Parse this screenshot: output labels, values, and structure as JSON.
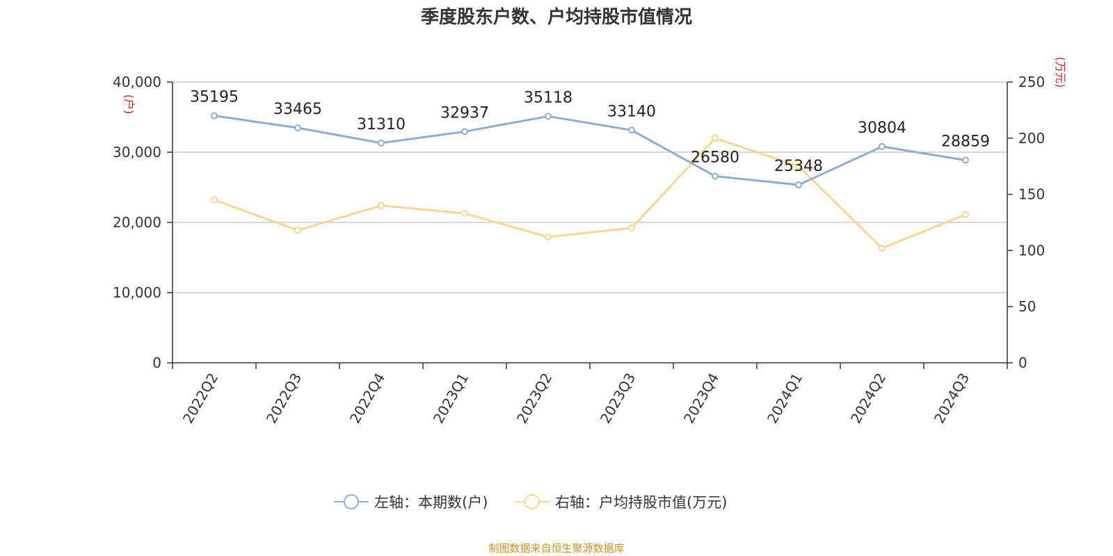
{
  "title": "季度股东户数、户均持股市值情况",
  "source": "制图数据来自恒生聚源数据库",
  "colors": {
    "series1": "#8eacd9",
    "series2": "#fcd68e",
    "unit": "#e02020",
    "source": "#c8951e",
    "grid": "#cccccc",
    "axis": "#333333"
  },
  "chart_data": {
    "type": "line",
    "title": "季度股东户数、户均持股市值情况",
    "categories": [
      "2022Q2",
      "2022Q3",
      "2022Q4",
      "2023Q1",
      "2023Q2",
      "2023Q3",
      "2023Q4",
      "2024Q1",
      "2024Q2",
      "2024Q3"
    ],
    "left_axis": {
      "unit": "(户)",
      "ylim": [
        0,
        40000
      ],
      "ticks": [
        0,
        10000,
        20000,
        30000,
        40000
      ],
      "tick_labels": [
        "0",
        "10,000",
        "20,000",
        "30,000",
        "40,000"
      ]
    },
    "right_axis": {
      "unit": "(万元)",
      "ylim": [
        0,
        250
      ],
      "ticks": [
        0,
        50,
        100,
        150,
        200,
        250
      ],
      "tick_labels": [
        "0",
        "50",
        "100",
        "150",
        "200",
        "250"
      ]
    },
    "series": [
      {
        "name": "左轴：本期数(户)",
        "axis": "left",
        "values": [
          35195,
          33465,
          31310,
          32937,
          35118,
          33140,
          26580,
          25348,
          30804,
          28859
        ],
        "labels": [
          "35195",
          "33465",
          "31310",
          "32937",
          "35118",
          "33140",
          "26580",
          "25348",
          "30804",
          "28859"
        ]
      },
      {
        "name": "右轴：户均持股市值(万元)",
        "axis": "right",
        "values": [
          145,
          118,
          140,
          133,
          112,
          120,
          200,
          175,
          102,
          132
        ]
      }
    ],
    "grid": true,
    "legend_position": "bottom-center"
  }
}
